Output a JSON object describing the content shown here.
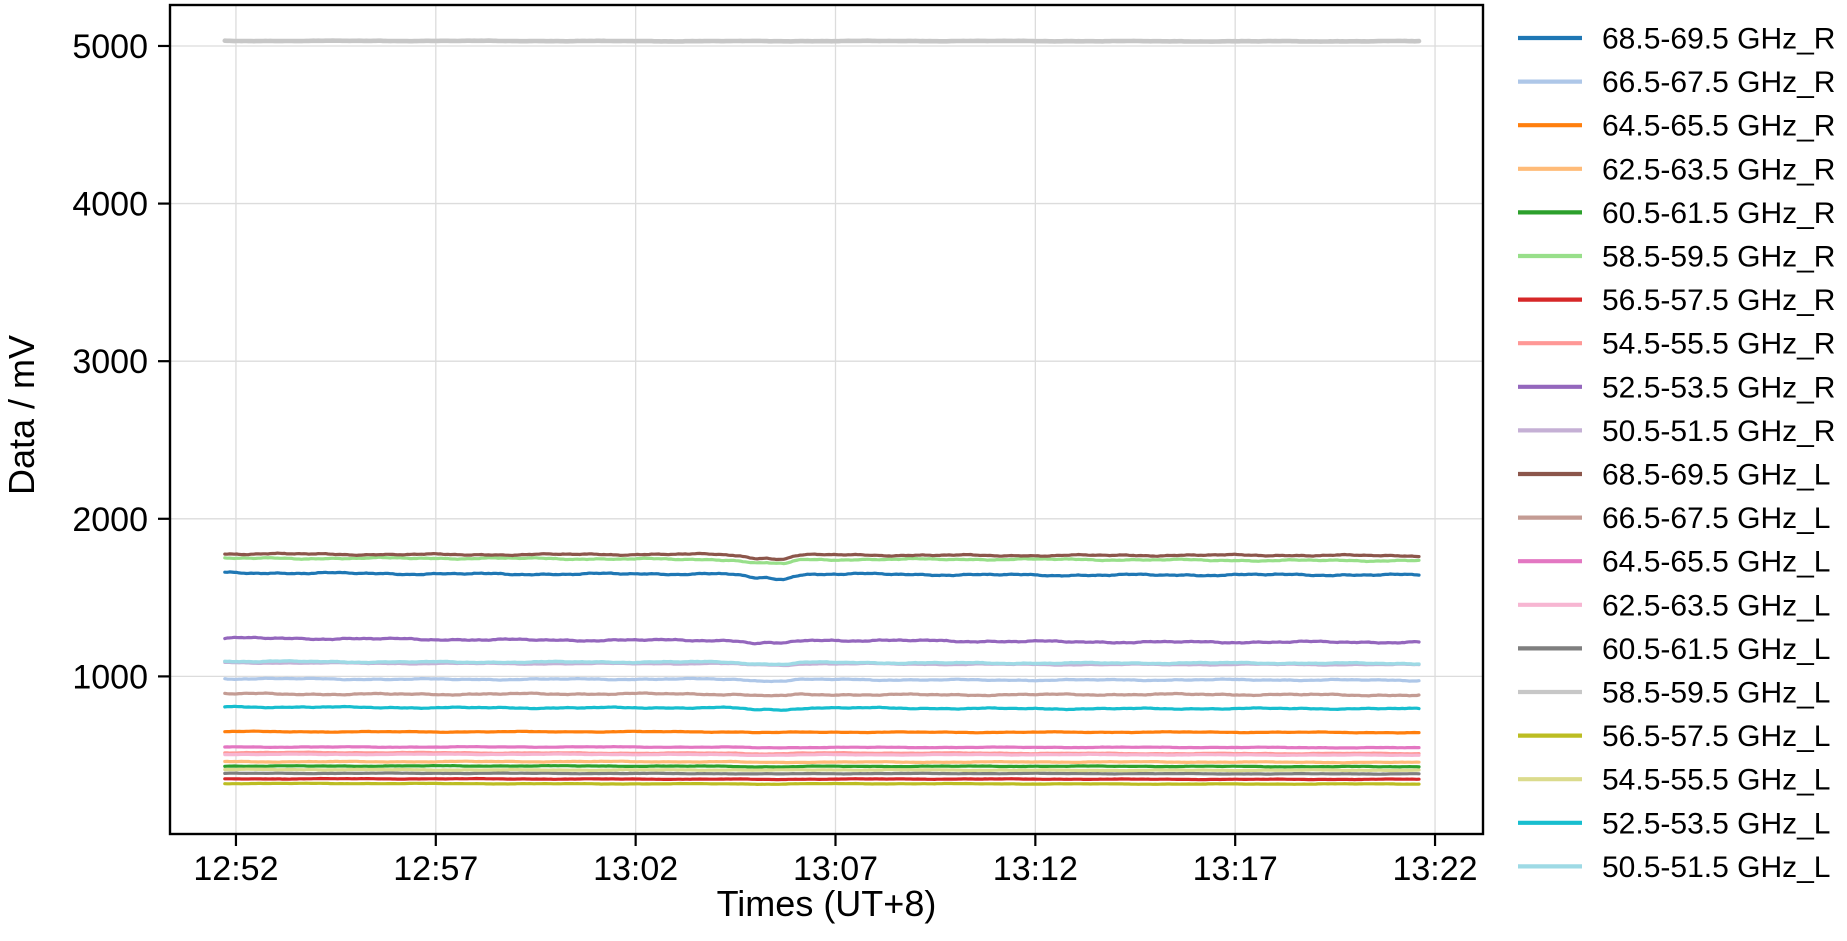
{
  "chart_data": {
    "type": "line",
    "title": "",
    "xlabel": "Times (UT+8)",
    "ylabel": "Data / mV",
    "x_tick_labels": [
      "12:52",
      "12:57",
      "13:02",
      "13:07",
      "13:12",
      "13:17",
      "13:22"
    ],
    "x_tick_minutes": [
      772,
      777,
      782,
      787,
      792,
      797,
      802
    ],
    "y_ticks": [
      1000,
      2000,
      3000,
      4000,
      5000
    ],
    "xlim_minutes": [
      770.35,
      803.2
    ],
    "ylim": [
      0,
      5260
    ],
    "data_start_minutes": 771.72,
    "data_end_minutes": 801.6,
    "data_time_range": {
      "start": "12:51:45",
      "end": "13:21:40"
    },
    "grid": true,
    "grid_color": "#dcdcdc",
    "event": {
      "description": "small synchronous dip in several channels",
      "time_label": "13:05:30",
      "dip_lobe_minutes": [
        785.0,
        785.62
      ]
    },
    "legend_position": "right-outside",
    "series": [
      {
        "name": "68.5-69.5 GHz_R",
        "color": "#1f77b4",
        "level_mV": 1655,
        "drift_mV": -14,
        "noise_mV": 7,
        "dip_mV": 32,
        "linewidth": 3.2
      },
      {
        "name": "66.5-67.5 GHz_R",
        "color": "#aec7e8",
        "level_mV": 985,
        "drift_mV": -10,
        "noise_mV": 5,
        "dip_mV": 10,
        "linewidth": 3.2
      },
      {
        "name": "64.5-65.5 GHz_R",
        "color": "#ff7f0e",
        "level_mV": 650,
        "drift_mV": -6,
        "noise_mV": 3,
        "dip_mV": 4,
        "linewidth": 3.2
      },
      {
        "name": "62.5-63.5 GHz_R",
        "color": "#ffbb78",
        "level_mV": 460,
        "drift_mV": -5,
        "noise_mV": 3,
        "dip_mV": 3,
        "linewidth": 3.2
      },
      {
        "name": "60.5-61.5 GHz_R",
        "color": "#2ca02c",
        "level_mV": 432,
        "drift_mV": -4,
        "noise_mV": 2.5,
        "dip_mV": 3,
        "linewidth": 3.2
      },
      {
        "name": "58.5-59.5 GHz_R",
        "color": "#98df8a",
        "level_mV": 1750,
        "drift_mV": -14,
        "noise_mV": 6,
        "dip_mV": 26,
        "linewidth": 3.2
      },
      {
        "name": "56.5-57.5 GHz_R",
        "color": "#d62728",
        "level_mV": 350,
        "drift_mV": -3,
        "noise_mV": 2,
        "dip_mV": 2,
        "linewidth": 3.2
      },
      {
        "name": "54.5-55.5 GHz_R",
        "color": "#ff9896",
        "level_mV": 516,
        "drift_mV": -6,
        "noise_mV": 3,
        "dip_mV": 4,
        "linewidth": 3.2
      },
      {
        "name": "52.5-53.5 GHz_R",
        "color": "#9467bd",
        "level_mV": 1240,
        "drift_mV": -26,
        "noise_mV": 7,
        "dip_mV": 22,
        "linewidth": 3.2
      },
      {
        "name": "50.5-51.5 GHz_R",
        "color": "#c5b0d5",
        "level_mV": 1085,
        "drift_mV": -12,
        "noise_mV": 4,
        "dip_mV": 10,
        "linewidth": 3.2
      },
      {
        "name": "68.5-69.5 GHz_L",
        "color": "#8c564b",
        "level_mV": 1777,
        "drift_mV": -12,
        "noise_mV": 6,
        "dip_mV": 26,
        "linewidth": 3.2
      },
      {
        "name": "66.5-67.5 GHz_L",
        "color": "#c49c94",
        "level_mV": 890,
        "drift_mV": -8,
        "noise_mV": 6,
        "dip_mV": 10,
        "linewidth": 3.2
      },
      {
        "name": "64.5-65.5 GHz_L",
        "color": "#e377c2",
        "level_mV": 553,
        "drift_mV": -5,
        "noise_mV": 2.5,
        "dip_mV": 3,
        "linewidth": 3.2
      },
      {
        "name": "62.5-63.5 GHz_L",
        "color": "#f7b6d2",
        "level_mV": 506,
        "drift_mV": -5,
        "noise_mV": 2.5,
        "dip_mV": 3,
        "linewidth": 3.2
      },
      {
        "name": "60.5-61.5 GHz_L",
        "color": "#7f7f7f",
        "level_mV": 385,
        "drift_mV": -3,
        "noise_mV": 2,
        "dip_mV": 2,
        "linewidth": 3.2
      },
      {
        "name": "58.5-59.5 GHz_L",
        "color": "#c7c7c7",
        "level_mV": 5032,
        "drift_mV": -2,
        "noise_mV": 2,
        "dip_mV": 0,
        "linewidth": 4.6
      },
      {
        "name": "56.5-57.5 GHz_L",
        "color": "#bcbd22",
        "level_mV": 320,
        "drift_mV": -3,
        "noise_mV": 2,
        "dip_mV": 2,
        "linewidth": 3.2
      },
      {
        "name": "54.5-55.5 GHz_L",
        "color": "#dbdb8d",
        "level_mV": 408,
        "drift_mV": -4,
        "noise_mV": 2.5,
        "dip_mV": 2,
        "linewidth": 3.2
      },
      {
        "name": "52.5-53.5 GHz_L",
        "color": "#17becf",
        "level_mV": 805,
        "drift_mV": -12,
        "noise_mV": 5,
        "dip_mV": 14,
        "linewidth": 3.2
      },
      {
        "name": "50.5-51.5 GHz_L",
        "color": "#9edae5",
        "level_mV": 1095,
        "drift_mV": -14,
        "noise_mV": 5,
        "dip_mV": 12,
        "linewidth": 3.4
      }
    ]
  }
}
